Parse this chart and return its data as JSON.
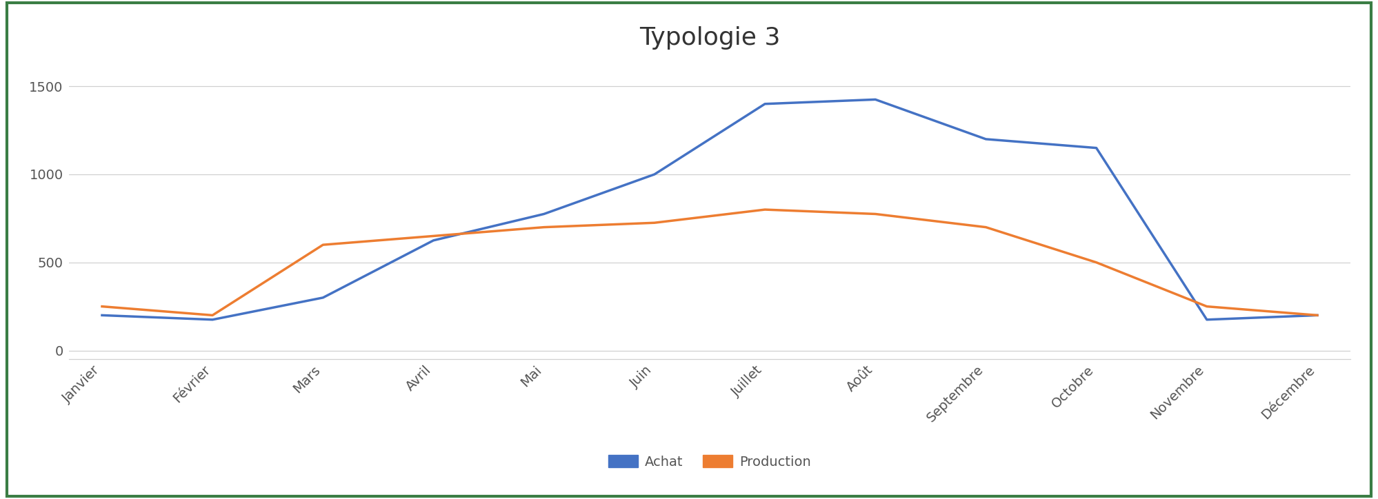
{
  "title": "Typologie 3",
  "months": [
    "Janvier",
    "Février",
    "Mars",
    "Avril",
    "Mai",
    "Juin",
    "Juillet",
    "Août",
    "Septembre",
    "Octobre",
    "Novembre",
    "Décembre"
  ],
  "achat": [
    200,
    175,
    300,
    625,
    775,
    1000,
    1400,
    1425,
    1200,
    1150,
    175,
    200
  ],
  "production": [
    250,
    200,
    600,
    650,
    700,
    725,
    800,
    775,
    700,
    500,
    250,
    200
  ],
  "achat_color": "#4472C4",
  "production_color": "#ED7D31",
  "achat_label": "Achat",
  "production_label": "Production",
  "ylim": [
    -50,
    1650
  ],
  "yticks": [
    0,
    500,
    1000,
    1500
  ],
  "title_fontsize": 26,
  "tick_fontsize": 14,
  "legend_fontsize": 14,
  "line_width": 2.5,
  "background_color": "#ffffff",
  "border_color": "#3a7d44",
  "grid_color": "#d0d0d0"
}
